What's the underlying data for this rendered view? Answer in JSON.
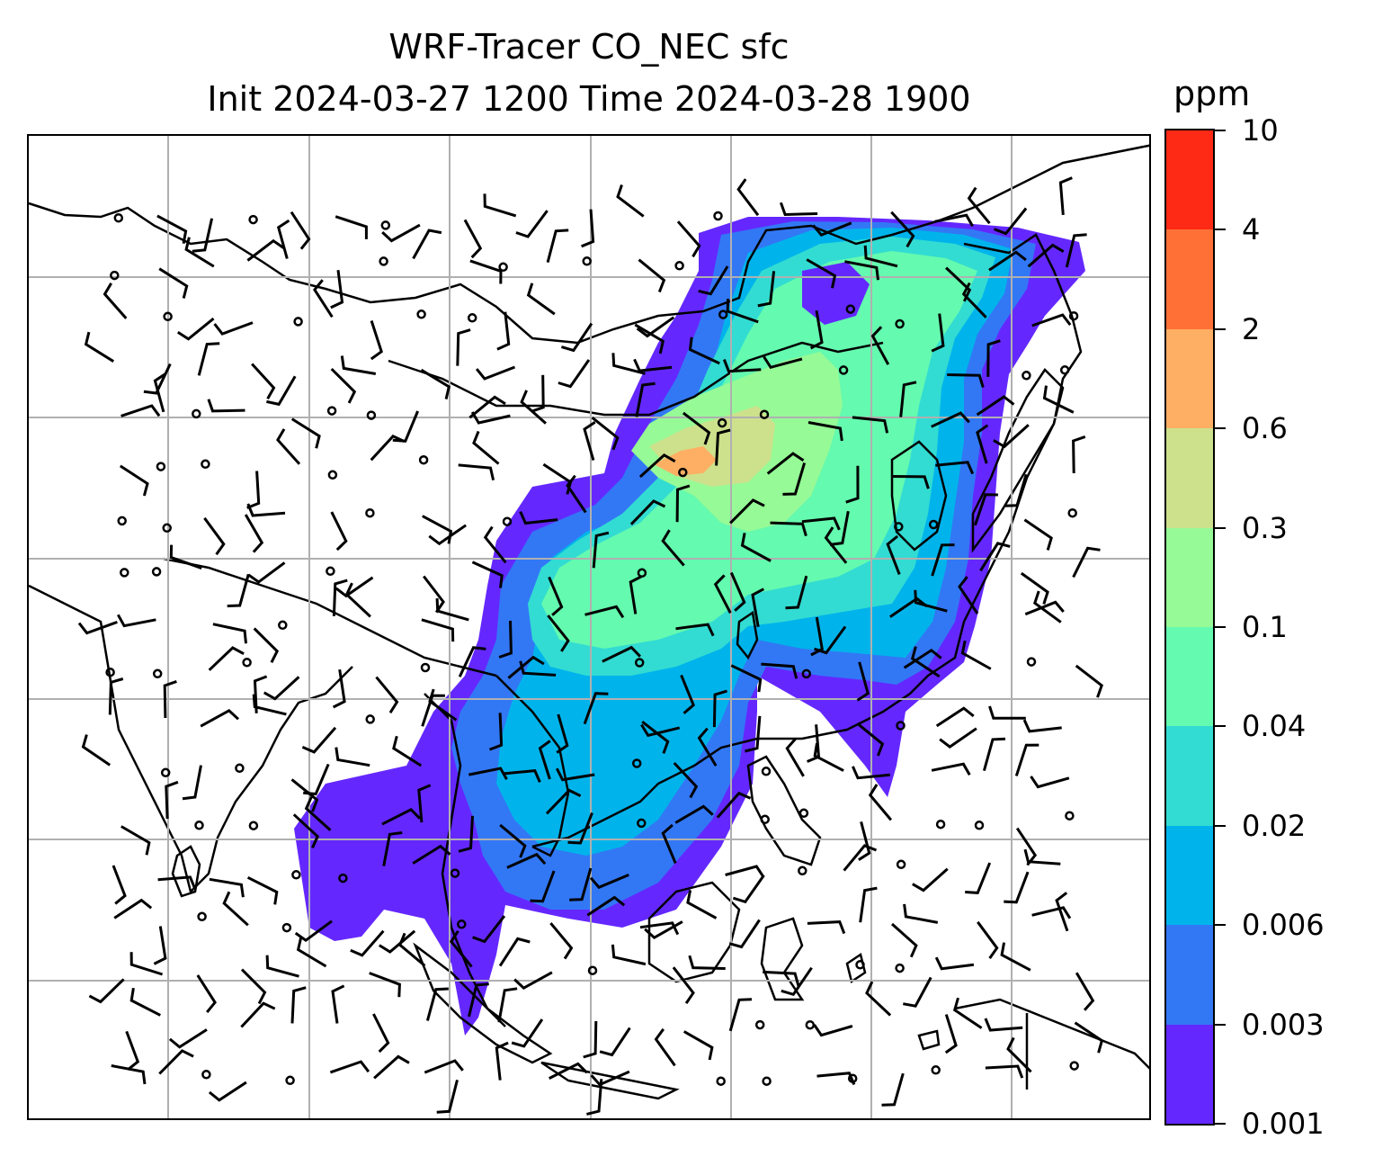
{
  "title": {
    "line1": "WRF-Tracer CO_NEC sfc",
    "line2": "Init 2024-03-27 1200 Time 2024-03-28 1900"
  },
  "colorbar": {
    "unit": "ppm",
    "ticks": [
      "0.001",
      "0.003",
      "0.006",
      "0.02",
      "0.04",
      "0.1",
      "0.3",
      "0.6",
      "2",
      "4",
      "10"
    ],
    "colors": [
      "#6428ff",
      "#3278f5",
      "#00b4eb",
      "#32dcd2",
      "#64faaf",
      "#96fa96",
      "#cde18c",
      "#ffaf64",
      "#ff7037",
      "#ff2a15"
    ]
  },
  "map": {
    "gridlines": "on",
    "coastlines": "on",
    "country_borders": "on",
    "wind_barbs": "on",
    "shading_field": "CO_NEC surface concentration"
  }
}
